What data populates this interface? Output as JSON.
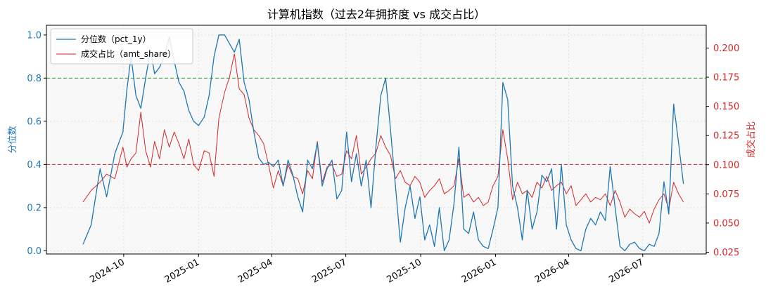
{
  "chart_data": {
    "type": "line",
    "title": "计算机指数（过去2年拥挤度 vs 成交占比）",
    "y_left": {
      "label": "分位数",
      "lim": [
        -0.015,
        1.045
      ],
      "ticks": [
        0.0,
        0.2,
        0.4,
        0.6,
        0.8,
        1.0
      ],
      "tick_labels": [
        "0.0",
        "0.2",
        "0.4",
        "0.6",
        "0.8",
        "1.0"
      ],
      "color": "#1f77b4"
    },
    "y_right": {
      "label": "成交占比",
      "lim": [
        0.0235,
        0.2195
      ],
      "ticks": [
        0.025,
        0.05,
        0.075,
        0.1,
        0.125,
        0.15,
        0.175,
        0.2
      ],
      "tick_labels": [
        "0.025",
        "0.050",
        "0.075",
        "0.100",
        "0.125",
        "0.150",
        "0.175",
        "0.200"
      ],
      "color": "#d62728"
    },
    "x_axis": {
      "lim": [
        "2024-06-28",
        "2026-09-17"
      ],
      "ticks": [
        "2024-10-01",
        "2025-01-01",
        "2025-04-01",
        "2025-07-01",
        "2025-10-01",
        "2026-01-01",
        "2026-04-01",
        "2026-07-01"
      ],
      "tick_labels": [
        "2024-10",
        "2025-01",
        "2025-04",
        "2025-07",
        "2025-10",
        "2026-01",
        "2026-04",
        "2026-07"
      ]
    },
    "reference_lines": [
      {
        "axis": "left",
        "value": 0.8,
        "color": "#2ca02c",
        "style": "dashed"
      },
      {
        "axis": "left",
        "value": 0.4,
        "color": "#d62728",
        "style": "dashed"
      }
    ],
    "grid": true,
    "legend": {
      "position": "top-left"
    },
    "series": [
      {
        "name": "分位数（pct_1y）",
        "axis": "left",
        "color": "#1f77b4",
        "x": [
          "2024-08-12",
          "2024-08-22",
          "2024-09-02",
          "2024-09-10",
          "2024-09-20",
          "2024-09-30",
          "2024-10-05",
          "2024-10-10",
          "2024-10-16",
          "2024-10-22",
          "2024-10-28",
          "2024-11-03",
          "2024-11-08",
          "2024-11-14",
          "2024-11-20",
          "2024-11-26",
          "2024-12-02",
          "2024-12-08",
          "2024-12-14",
          "2024-12-20",
          "2024-12-26",
          "2025-01-01",
          "2025-01-08",
          "2025-01-14",
          "2025-01-20",
          "2025-01-26",
          "2025-02-02",
          "2025-02-08",
          "2025-02-14",
          "2025-02-20",
          "2025-02-26",
          "2025-03-04",
          "2025-03-10",
          "2025-03-16",
          "2025-03-22",
          "2025-03-28",
          "2025-04-03",
          "2025-04-09",
          "2025-04-15",
          "2025-04-21",
          "2025-04-27",
          "2025-05-03",
          "2025-05-09",
          "2025-05-15",
          "2025-05-21",
          "2025-05-27",
          "2025-06-02",
          "2025-06-08",
          "2025-06-14",
          "2025-06-20",
          "2025-06-26",
          "2025-07-02",
          "2025-07-08",
          "2025-07-14",
          "2025-07-20",
          "2025-07-26",
          "2025-08-01",
          "2025-08-07",
          "2025-08-13",
          "2025-08-19",
          "2025-08-25",
          "2025-08-31",
          "2025-09-06",
          "2025-09-12",
          "2025-09-18",
          "2025-09-24",
          "2025-09-30",
          "2025-10-06",
          "2025-10-12",
          "2025-10-18",
          "2025-10-24",
          "2025-10-30",
          "2025-11-05",
          "2025-11-11",
          "2025-11-17",
          "2025-11-23",
          "2025-11-29",
          "2025-12-05",
          "2025-12-11",
          "2025-12-17",
          "2025-12-23",
          "2025-12-29",
          "2026-01-04",
          "2026-01-10",
          "2026-01-16",
          "2026-01-22",
          "2026-01-28",
          "2026-02-03",
          "2026-02-09",
          "2026-02-15",
          "2026-02-21",
          "2026-02-27",
          "2026-03-05",
          "2026-03-11",
          "2026-03-17",
          "2026-03-23",
          "2026-03-29",
          "2026-04-04",
          "2026-04-10",
          "2026-04-16",
          "2026-04-22",
          "2026-04-28",
          "2026-05-04",
          "2026-05-10",
          "2026-05-16",
          "2026-05-22",
          "2026-05-28",
          "2026-06-03",
          "2026-06-09",
          "2026-06-15",
          "2026-06-21",
          "2026-06-27",
          "2026-07-03",
          "2026-07-09",
          "2026-07-15",
          "2026-07-21",
          "2026-07-27",
          "2026-08-02",
          "2026-08-08",
          "2026-08-14",
          "2026-08-20"
        ],
        "values": [
          0.03,
          0.12,
          0.38,
          0.25,
          0.45,
          0.55,
          0.75,
          0.9,
          0.72,
          0.66,
          0.8,
          0.93,
          0.82,
          0.85,
          0.9,
          0.99,
          0.88,
          0.78,
          0.74,
          0.65,
          0.6,
          0.58,
          0.62,
          0.72,
          0.9,
          1.0,
          1.0,
          0.96,
          0.92,
          0.98,
          0.78,
          0.7,
          0.55,
          0.43,
          0.4,
          0.41,
          0.39,
          0.42,
          0.3,
          0.42,
          0.35,
          0.25,
          0.18,
          0.42,
          0.38,
          0.5,
          0.3,
          0.38,
          0.42,
          0.24,
          0.28,
          0.55,
          0.32,
          0.45,
          0.3,
          0.42,
          0.2,
          0.48,
          0.72,
          0.8,
          0.56,
          0.3,
          0.04,
          0.2,
          0.3,
          0.15,
          0.25,
          0.05,
          0.12,
          0.02,
          0.2,
          0.0,
          0.05,
          0.22,
          0.48,
          0.1,
          0.08,
          0.18,
          0.05,
          0.02,
          0.01,
          0.1,
          0.2,
          0.78,
          0.7,
          0.3,
          0.2,
          0.05,
          0.28,
          0.1,
          0.18,
          0.35,
          0.32,
          0.38,
          0.1,
          0.4,
          0.12,
          0.05,
          0.01,
          0.0,
          0.1,
          0.15,
          0.12,
          0.18,
          0.14,
          0.39,
          0.2,
          0.02,
          0.0,
          0.03,
          0.04,
          0.01,
          0.0,
          0.03,
          0.02,
          0.08,
          0.32,
          0.17,
          0.68,
          0.5,
          0.31
        ]
      },
      {
        "name": "成交占比（amt_share）",
        "axis": "right",
        "color": "#d62728",
        "x": [
          "2024-08-12",
          "2024-08-22",
          "2024-09-02",
          "2024-09-10",
          "2024-09-20",
          "2024-09-30",
          "2024-10-05",
          "2024-10-10",
          "2024-10-16",
          "2024-10-22",
          "2024-10-28",
          "2024-11-03",
          "2024-11-08",
          "2024-11-14",
          "2024-11-20",
          "2024-11-26",
          "2024-12-02",
          "2024-12-08",
          "2024-12-14",
          "2024-12-20",
          "2024-12-26",
          "2025-01-01",
          "2025-01-08",
          "2025-01-14",
          "2025-01-20",
          "2025-01-26",
          "2025-02-02",
          "2025-02-08",
          "2025-02-14",
          "2025-02-20",
          "2025-02-26",
          "2025-03-04",
          "2025-03-10",
          "2025-03-16",
          "2025-03-22",
          "2025-03-28",
          "2025-04-03",
          "2025-04-09",
          "2025-04-15",
          "2025-04-21",
          "2025-04-27",
          "2025-05-03",
          "2025-05-09",
          "2025-05-15",
          "2025-05-21",
          "2025-05-27",
          "2025-06-02",
          "2025-06-08",
          "2025-06-14",
          "2025-06-20",
          "2025-06-26",
          "2025-07-02",
          "2025-07-08",
          "2025-07-14",
          "2025-07-20",
          "2025-07-26",
          "2025-08-01",
          "2025-08-07",
          "2025-08-13",
          "2025-08-19",
          "2025-08-25",
          "2025-08-31",
          "2025-09-06",
          "2025-09-12",
          "2025-09-18",
          "2025-09-24",
          "2025-09-30",
          "2025-10-06",
          "2025-10-12",
          "2025-10-18",
          "2025-10-24",
          "2025-10-30",
          "2025-11-05",
          "2025-11-11",
          "2025-11-17",
          "2025-11-23",
          "2025-11-29",
          "2025-12-05",
          "2025-12-11",
          "2025-12-17",
          "2025-12-23",
          "2025-12-29",
          "2026-01-04",
          "2026-01-10",
          "2026-01-16",
          "2026-01-22",
          "2026-01-28",
          "2026-02-03",
          "2026-02-09",
          "2026-02-15",
          "2026-02-21",
          "2026-02-27",
          "2026-03-05",
          "2026-03-11",
          "2026-03-17",
          "2026-03-23",
          "2026-03-29",
          "2026-04-04",
          "2026-04-10",
          "2026-04-16",
          "2026-04-22",
          "2026-04-28",
          "2026-05-04",
          "2026-05-10",
          "2026-05-16",
          "2026-05-22",
          "2026-05-28",
          "2026-06-03",
          "2026-06-09",
          "2026-06-15",
          "2026-06-21",
          "2026-06-27",
          "2026-07-03",
          "2026-07-09",
          "2026-07-15",
          "2026-07-21",
          "2026-07-27",
          "2026-08-02",
          "2026-08-08",
          "2026-08-14",
          "2026-08-20"
        ],
        "values": [
          0.068,
          0.078,
          0.085,
          0.092,
          0.088,
          0.115,
          0.098,
          0.105,
          0.11,
          0.145,
          0.112,
          0.098,
          0.12,
          0.105,
          0.13,
          0.115,
          0.128,
          0.118,
          0.105,
          0.122,
          0.1,
          0.095,
          0.112,
          0.11,
          0.09,
          0.14,
          0.162,
          0.175,
          0.195,
          0.165,
          0.16,
          0.14,
          0.13,
          0.125,
          0.118,
          0.1,
          0.08,
          0.095,
          0.082,
          0.1,
          0.09,
          0.088,
          0.075,
          0.095,
          0.088,
          0.12,
          0.085,
          0.098,
          0.1,
          0.09,
          0.092,
          0.112,
          0.105,
          0.125,
          0.092,
          0.098,
          0.105,
          0.11,
          0.125,
          0.115,
          0.108,
          0.088,
          0.095,
          0.085,
          0.082,
          0.09,
          0.085,
          0.072,
          0.078,
          0.082,
          0.088,
          0.075,
          0.078,
          0.082,
          0.105,
          0.072,
          0.075,
          0.068,
          0.072,
          0.065,
          0.068,
          0.082,
          0.09,
          0.13,
          0.105,
          0.07,
          0.085,
          0.075,
          0.078,
          0.072,
          0.085,
          0.08,
          0.09,
          0.078,
          0.082,
          0.085,
          0.075,
          0.082,
          0.065,
          0.07,
          0.075,
          0.068,
          0.072,
          0.07,
          0.075,
          0.065,
          0.078,
          0.068,
          0.055,
          0.062,
          0.058,
          0.055,
          0.06,
          0.05,
          0.062,
          0.07,
          0.075,
          0.062,
          0.085,
          0.075,
          0.068
        ]
      }
    ]
  }
}
